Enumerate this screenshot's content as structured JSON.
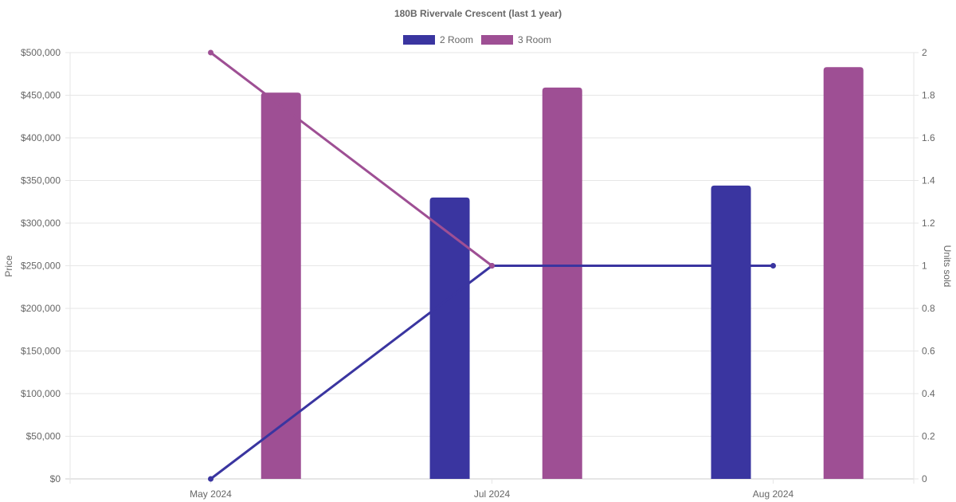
{
  "chart_data": {
    "type": "bar",
    "title": "180B Rivervale Crescent (last 1 year)",
    "categories": [
      "May 2024",
      "Jul 2024",
      "Aug 2024"
    ],
    "legend_position": "top",
    "grid": true,
    "y_left": {
      "label": "Price",
      "min": 0,
      "max": 500000,
      "step": 50000,
      "tick_labels": [
        "$0",
        "$50,000",
        "$100,000",
        "$150,000",
        "$200,000",
        "$250,000",
        "$300,000",
        "$350,000",
        "$400,000",
        "$450,000",
        "$500,000"
      ]
    },
    "y_right": {
      "label": "Units sold",
      "min": 0,
      "max": 2,
      "step": 0.2,
      "tick_labels": [
        "0",
        "0.2",
        "0.4",
        "0.6",
        "0.8",
        "1",
        "1.2",
        "1.4",
        "1.6",
        "1.8",
        "2"
      ]
    },
    "series": [
      {
        "name": "2 Room",
        "color": "#3a35a0",
        "price": [
          null,
          330000,
          344000
        ],
        "units_sold": [
          0,
          1,
          1
        ]
      },
      {
        "name": "3 Room",
        "color": "#9e4f94",
        "price": [
          453000,
          459000,
          483000
        ],
        "units_sold": [
          2,
          1,
          null
        ]
      }
    ]
  }
}
